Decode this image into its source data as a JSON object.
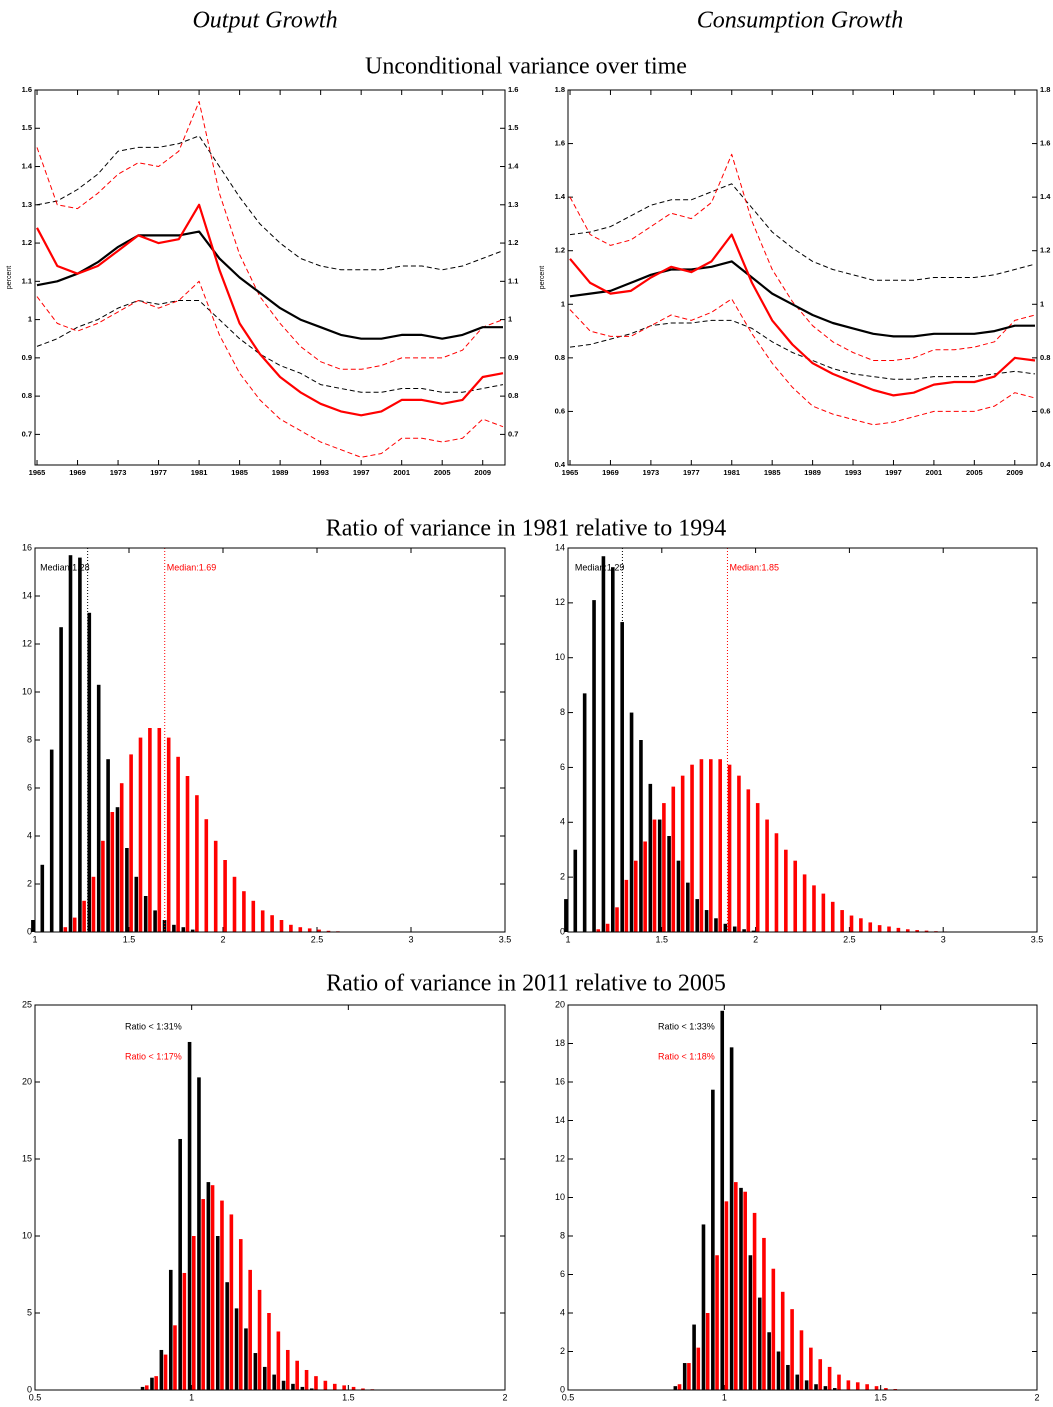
{
  "column_titles": [
    "Output Growth",
    "Consumption Growth"
  ],
  "section_titles": [
    "Unconditional variance over time",
    "Ratio of variance in 1981 relative to 1994",
    "Ratio of variance in 2011 relative to 2005"
  ],
  "chart_data": [
    {
      "type": "line",
      "ylabel": "percent",
      "mirror_ylabels": true,
      "x": [
        1965,
        1967,
        1969,
        1971,
        1973,
        1975,
        1977,
        1979,
        1981,
        1983,
        1985,
        1987,
        1989,
        1991,
        1993,
        1995,
        1997,
        1999,
        2001,
        2003,
        2005,
        2007,
        2009,
        2011
      ],
      "xlim": [
        1964.8,
        2011.2
      ],
      "ylim": [
        0.62,
        1.6
      ],
      "xticks": [
        1965,
        1969,
        1973,
        1977,
        1981,
        1985,
        1989,
        1993,
        1997,
        2001,
        2005,
        2009
      ],
      "yticks": [
        0.7,
        0.8,
        0.9,
        1,
        1.1,
        1.2,
        1.3,
        1.4,
        1.5,
        1.6
      ],
      "series": [
        {
          "color": "#000000",
          "linestyle": "dashed",
          "values": [
            1.3,
            1.31,
            1.34,
            1.38,
            1.44,
            1.45,
            1.45,
            1.46,
            1.48,
            1.4,
            1.32,
            1.25,
            1.2,
            1.16,
            1.14,
            1.13,
            1.13,
            1.13,
            1.14,
            1.14,
            1.13,
            1.14,
            1.16,
            1.18
          ]
        },
        {
          "color": "#000000",
          "linestyle": "dashed",
          "values": [
            0.93,
            0.95,
            0.98,
            1.0,
            1.03,
            1.05,
            1.04,
            1.05,
            1.05,
            1.0,
            0.95,
            0.91,
            0.88,
            0.86,
            0.83,
            0.82,
            0.81,
            0.81,
            0.82,
            0.82,
            0.81,
            0.81,
            0.82,
            0.83
          ]
        },
        {
          "color": "#ff0000",
          "linestyle": "dashed",
          "values": [
            1.45,
            1.3,
            1.29,
            1.33,
            1.38,
            1.41,
            1.4,
            1.44,
            1.57,
            1.33,
            1.17,
            1.06,
            0.99,
            0.93,
            0.89,
            0.87,
            0.87,
            0.88,
            0.9,
            0.9,
            0.9,
            0.92,
            0.98,
            1.0
          ]
        },
        {
          "color": "#ff0000",
          "linestyle": "dashed",
          "values": [
            1.06,
            0.99,
            0.97,
            0.99,
            1.02,
            1.05,
            1.03,
            1.05,
            1.1,
            0.96,
            0.86,
            0.79,
            0.74,
            0.71,
            0.68,
            0.66,
            0.64,
            0.65,
            0.69,
            0.69,
            0.68,
            0.69,
            0.74,
            0.72
          ]
        },
        {
          "color": "#000000",
          "linestyle": "solid",
          "values": [
            1.09,
            1.1,
            1.12,
            1.15,
            1.19,
            1.22,
            1.22,
            1.22,
            1.23,
            1.16,
            1.11,
            1.07,
            1.03,
            1.0,
            0.98,
            0.96,
            0.95,
            0.95,
            0.96,
            0.96,
            0.95,
            0.96,
            0.98,
            0.98
          ]
        },
        {
          "color": "#ff0000",
          "linestyle": "solid",
          "values": [
            1.24,
            1.14,
            1.12,
            1.14,
            1.18,
            1.22,
            1.2,
            1.21,
            1.3,
            1.13,
            0.99,
            0.91,
            0.85,
            0.81,
            0.78,
            0.76,
            0.75,
            0.76,
            0.79,
            0.79,
            0.78,
            0.79,
            0.85,
            0.86
          ]
        }
      ]
    },
    {
      "type": "line",
      "ylabel": "percent",
      "mirror_ylabels": true,
      "x": [
        1965,
        1967,
        1969,
        1971,
        1973,
        1975,
        1977,
        1979,
        1981,
        1983,
        1985,
        1987,
        1989,
        1991,
        1993,
        1995,
        1997,
        1999,
        2001,
        2003,
        2005,
        2007,
        2009,
        2011
      ],
      "xlim": [
        1964.8,
        2011.2
      ],
      "ylim": [
        0.4,
        1.8
      ],
      "xticks": [
        1965,
        1969,
        1973,
        1977,
        1981,
        1985,
        1989,
        1993,
        1997,
        2001,
        2005,
        2009
      ],
      "yticks": [
        0.4,
        0.6,
        0.8,
        1,
        1.2,
        1.4,
        1.6,
        1.8
      ],
      "series": [
        {
          "color": "#000000",
          "linestyle": "dashed",
          "values": [
            1.26,
            1.27,
            1.29,
            1.33,
            1.37,
            1.39,
            1.39,
            1.42,
            1.45,
            1.36,
            1.27,
            1.21,
            1.16,
            1.13,
            1.11,
            1.09,
            1.09,
            1.09,
            1.1,
            1.1,
            1.1,
            1.11,
            1.13,
            1.15
          ]
        },
        {
          "color": "#000000",
          "linestyle": "dashed",
          "values": [
            0.84,
            0.85,
            0.87,
            0.89,
            0.92,
            0.93,
            0.93,
            0.94,
            0.94,
            0.91,
            0.86,
            0.82,
            0.79,
            0.76,
            0.74,
            0.73,
            0.72,
            0.72,
            0.73,
            0.73,
            0.73,
            0.74,
            0.75,
            0.74
          ]
        },
        {
          "color": "#ff0000",
          "linestyle": "dashed",
          "values": [
            1.4,
            1.26,
            1.22,
            1.24,
            1.29,
            1.34,
            1.32,
            1.38,
            1.56,
            1.31,
            1.13,
            1.01,
            0.92,
            0.86,
            0.82,
            0.79,
            0.79,
            0.8,
            0.83,
            0.83,
            0.84,
            0.86,
            0.94,
            0.96
          ]
        },
        {
          "color": "#ff0000",
          "linestyle": "dashed",
          "values": [
            0.98,
            0.9,
            0.88,
            0.88,
            0.92,
            0.96,
            0.94,
            0.97,
            1.02,
            0.89,
            0.78,
            0.69,
            0.62,
            0.59,
            0.57,
            0.55,
            0.56,
            0.58,
            0.6,
            0.6,
            0.6,
            0.62,
            0.67,
            0.65
          ]
        },
        {
          "color": "#000000",
          "linestyle": "solid",
          "values": [
            1.03,
            1.04,
            1.05,
            1.08,
            1.11,
            1.13,
            1.13,
            1.14,
            1.16,
            1.1,
            1.04,
            1.0,
            0.96,
            0.93,
            0.91,
            0.89,
            0.88,
            0.88,
            0.89,
            0.89,
            0.89,
            0.9,
            0.92,
            0.92
          ]
        },
        {
          "color": "#ff0000",
          "linestyle": "solid",
          "values": [
            1.17,
            1.08,
            1.04,
            1.05,
            1.1,
            1.14,
            1.12,
            1.16,
            1.26,
            1.08,
            0.94,
            0.85,
            0.78,
            0.74,
            0.71,
            0.68,
            0.66,
            0.67,
            0.7,
            0.71,
            0.71,
            0.73,
            0.8,
            0.79
          ]
        }
      ]
    },
    {
      "type": "bar",
      "x": [
        1,
        1.05,
        1.1,
        1.15,
        1.2,
        1.25,
        1.3,
        1.35,
        1.4,
        1.45,
        1.5,
        1.55,
        1.6,
        1.65,
        1.7,
        1.75,
        1.8,
        1.85,
        1.9,
        1.95,
        2,
        2.05,
        2.1,
        2.15,
        2.2,
        2.25,
        2.3,
        2.35,
        2.4,
        2.45,
        2.5,
        2.55,
        2.6,
        2.65,
        2.7,
        2.75,
        2.8,
        2.85,
        2.9,
        2.95
      ],
      "xlim": [
        1,
        3.5
      ],
      "ylim": [
        0,
        16
      ],
      "xticks": [
        1,
        1.5,
        2,
        2.5,
        3,
        3.5
      ],
      "yticks": [
        0,
        2,
        4,
        6,
        8,
        10,
        12,
        14,
        16
      ],
      "series": [
        {
          "color": "#000000",
          "values": [
            0.5,
            2.8,
            7.6,
            12.7,
            15.7,
            15.6,
            13.3,
            10.3,
            7.2,
            5.2,
            3.5,
            2.3,
            1.5,
            0.9,
            0.5,
            0.3,
            0.2,
            0.1,
            0,
            0,
            0,
            0,
            0,
            0,
            0,
            0,
            0,
            0,
            0,
            0,
            0,
            0,
            0,
            0,
            0,
            0,
            0,
            0,
            0,
            0
          ]
        },
        {
          "color": "#ff0000",
          "values": [
            0,
            0,
            0,
            0.2,
            0.6,
            1.3,
            2.3,
            3.8,
            5.0,
            6.2,
            7.4,
            8.1,
            8.5,
            8.5,
            8.1,
            7.3,
            6.5,
            5.7,
            4.7,
            3.8,
            3.0,
            2.3,
            1.7,
            1.3,
            0.9,
            0.7,
            0.5,
            0.3,
            0.2,
            0.15,
            0.1,
            0.05,
            0.03,
            0.02,
            0.01,
            0,
            0,
            0,
            0,
            0
          ]
        }
      ],
      "medians": [
        {
          "label": "Median:1.28",
          "value": 1.28,
          "color": "#000000"
        },
        {
          "label": "Median:1.69",
          "value": 1.69,
          "color": "#ff0000"
        }
      ]
    },
    {
      "type": "bar",
      "x": [
        1,
        1.05,
        1.1,
        1.15,
        1.2,
        1.25,
        1.3,
        1.35,
        1.4,
        1.45,
        1.5,
        1.55,
        1.6,
        1.65,
        1.7,
        1.75,
        1.8,
        1.85,
        1.9,
        1.95,
        2,
        2.05,
        2.1,
        2.15,
        2.2,
        2.25,
        2.3,
        2.35,
        2.4,
        2.45,
        2.5,
        2.55,
        2.6,
        2.65,
        2.7,
        2.75,
        2.8,
        2.85,
        2.9,
        2.95,
        3
      ],
      "xlim": [
        1,
        3.5
      ],
      "ylim": [
        0,
        14
      ],
      "xticks": [
        1,
        1.5,
        2,
        2.5,
        3,
        3.5
      ],
      "yticks": [
        0,
        2,
        4,
        6,
        8,
        10,
        12,
        14
      ],
      "series": [
        {
          "color": "#000000",
          "values": [
            1.2,
            3.0,
            8.7,
            12.1,
            13.7,
            13.3,
            11.3,
            8.0,
            7.0,
            5.4,
            4.1,
            3.5,
            2.6,
            1.8,
            1.2,
            0.8,
            0.5,
            0.3,
            0.2,
            0.1,
            0.05,
            0,
            0,
            0,
            0,
            0,
            0,
            0,
            0,
            0,
            0,
            0,
            0,
            0,
            0,
            0,
            0,
            0,
            0,
            0,
            0
          ]
        },
        {
          "color": "#ff0000",
          "values": [
            0,
            0,
            0,
            0.1,
            0.3,
            0.9,
            1.9,
            2.6,
            3.3,
            4.1,
            4.7,
            5.3,
            5.7,
            6.1,
            6.3,
            6.3,
            6.3,
            6.1,
            5.7,
            5.2,
            4.7,
            4.1,
            3.6,
            3.0,
            2.6,
            2.1,
            1.7,
            1.4,
            1.1,
            0.8,
            0.6,
            0.5,
            0.35,
            0.25,
            0.2,
            0.15,
            0.1,
            0.07,
            0.05,
            0.03,
            0.02
          ]
        }
      ],
      "medians": [
        {
          "label": "Median:1.29",
          "value": 1.29,
          "color": "#000000"
        },
        {
          "label": "Median:1.85",
          "value": 1.85,
          "color": "#ff0000"
        }
      ]
    },
    {
      "type": "bar",
      "x": [
        0.85,
        0.88,
        0.91,
        0.94,
        0.97,
        1,
        1.03,
        1.06,
        1.09,
        1.12,
        1.15,
        1.18,
        1.21,
        1.24,
        1.27,
        1.3,
        1.33,
        1.36,
        1.39,
        1.42,
        1.45,
        1.48,
        1.51,
        1.54,
        1.57
      ],
      "xlim": [
        0.5,
        2
      ],
      "ylim": [
        0,
        25
      ],
      "xticks": [
        0.5,
        1,
        1.5,
        2
      ],
      "yticks": [
        0,
        5,
        10,
        15,
        20,
        25
      ],
      "series": [
        {
          "color": "#000000",
          "values": [
            0.2,
            0.8,
            2.6,
            7.8,
            16.3,
            22.6,
            20.3,
            13.5,
            10.0,
            7.0,
            5.3,
            4.0,
            2.4,
            1.5,
            1.0,
            0.6,
            0.4,
            0.2,
            0.1,
            0,
            0,
            0,
            0,
            0,
            0
          ]
        },
        {
          "color": "#ff0000",
          "values": [
            0.3,
            0.9,
            2.3,
            4.2,
            7.6,
            10.0,
            12.4,
            13.3,
            12.3,
            11.4,
            9.8,
            7.8,
            6.5,
            5.0,
            3.8,
            2.6,
            1.9,
            1.3,
            0.9,
            0.6,
            0.4,
            0.3,
            0.2,
            0.1,
            0.05
          ]
        }
      ],
      "notes": [
        {
          "label": "Ratio < 1:31%",
          "color": "#000000"
        },
        {
          "label": "Ratio < 1:17%",
          "color": "#ff0000"
        }
      ]
    },
    {
      "type": "bar",
      "x": [
        0.85,
        0.88,
        0.91,
        0.94,
        0.97,
        1,
        1.03,
        1.06,
        1.09,
        1.12,
        1.15,
        1.18,
        1.21,
        1.24,
        1.27,
        1.3,
        1.33,
        1.36,
        1.39,
        1.42,
        1.45,
        1.48,
        1.51,
        1.54,
        1.57
      ],
      "xlim": [
        0.5,
        2
      ],
      "ylim": [
        0,
        20
      ],
      "xticks": [
        0.5,
        1,
        1.5,
        2
      ],
      "yticks": [
        0,
        2,
        4,
        6,
        8,
        10,
        12,
        14,
        16,
        18,
        20
      ],
      "series": [
        {
          "color": "#000000",
          "values": [
            0.2,
            1.4,
            3.4,
            8.6,
            15.6,
            19.7,
            17.8,
            10.5,
            7.0,
            4.8,
            3.0,
            2.0,
            1.3,
            0.8,
            0.5,
            0.3,
            0.2,
            0.1,
            0,
            0,
            0,
            0,
            0,
            0,
            0
          ]
        },
        {
          "color": "#ff0000",
          "values": [
            0.3,
            1.4,
            2.2,
            4.0,
            7.0,
            9.8,
            10.8,
            10.3,
            9.2,
            7.9,
            6.3,
            5.1,
            4.2,
            3.1,
            2.2,
            1.6,
            1.2,
            0.8,
            0.5,
            0.4,
            0.3,
            0.2,
            0.1,
            0.05,
            0
          ]
        }
      ],
      "notes": [
        {
          "label": "Ratio < 1:33%",
          "color": "#000000"
        },
        {
          "label": "Ratio < 1:18%",
          "color": "#ff0000"
        }
      ]
    }
  ]
}
